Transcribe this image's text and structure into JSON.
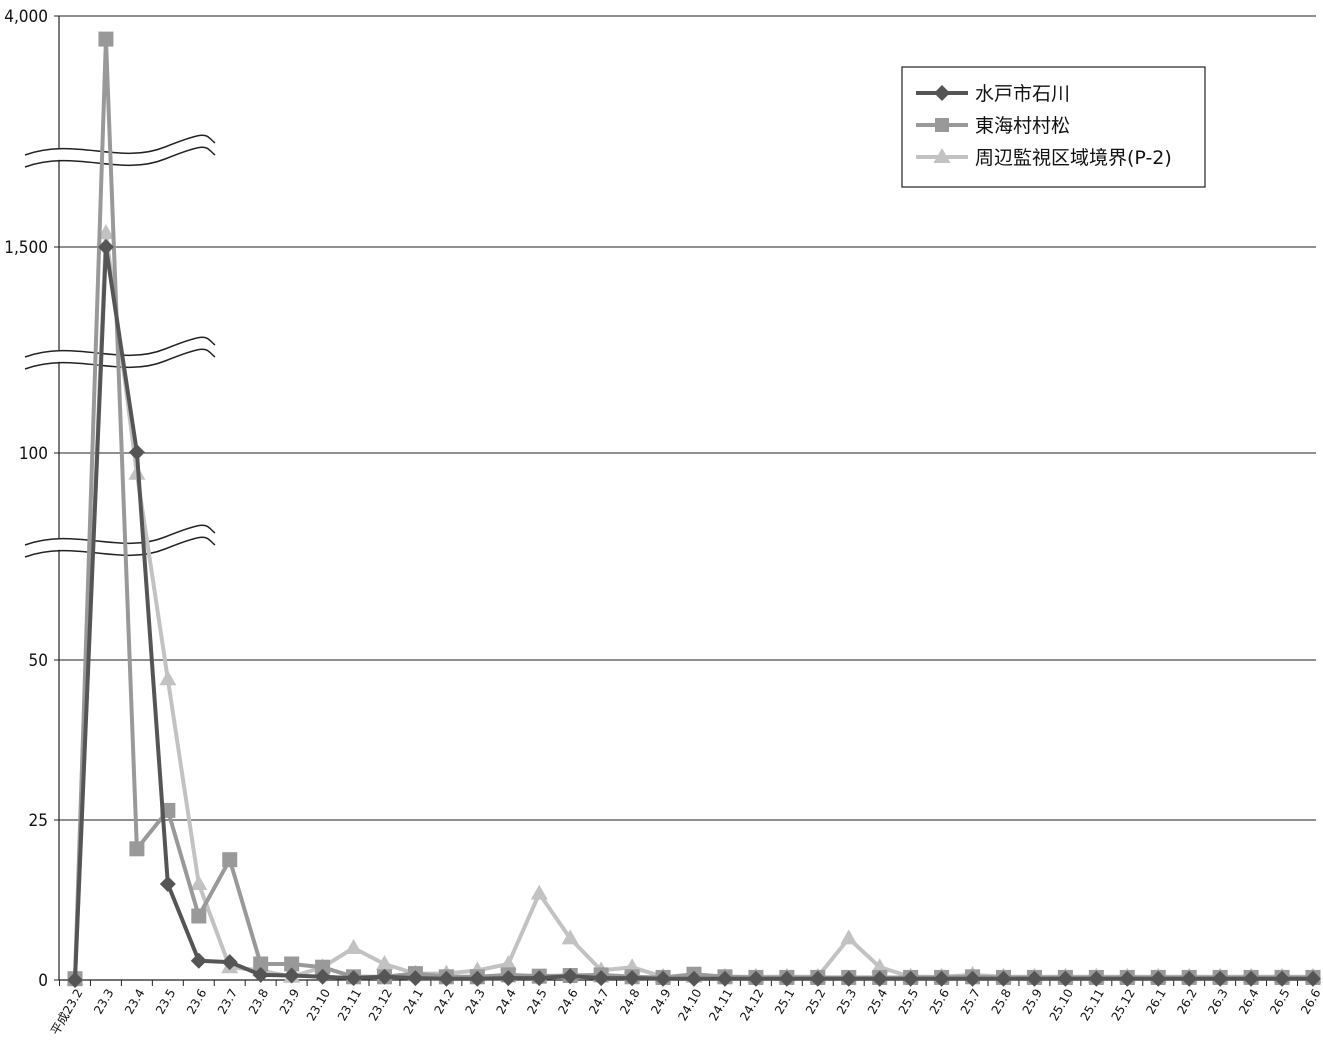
{
  "chart_data": {
    "type": "line",
    "title": "",
    "xlabel": "",
    "ylabel": "",
    "y_axis": {
      "scale": "broken",
      "tick_labels": [
        "0",
        "25",
        "50",
        "100",
        "1,500",
        "4,000"
      ],
      "breaks": "axis breaks between 50 and 100, between 100 and 1,500, and between 1,500 and 4,000"
    },
    "legend_position": "top-right",
    "grid": true,
    "categories": [
      "平成23.2",
      "23.3",
      "23.4",
      "23.5",
      "23.6",
      "23.7",
      "23.8",
      "23.9",
      "23.10",
      "23.11",
      "23.12",
      "24.1",
      "24.2",
      "24.3",
      "24.4",
      "24.5",
      "24.6",
      "24.7",
      "24.8",
      "24.9",
      "24.10",
      "24.11",
      "24.12",
      "25.1",
      "25.2",
      "25.3",
      "25.4",
      "25.5",
      "25.6",
      "25.7",
      "25.8",
      "25.9",
      "25.10",
      "25.11",
      "25.12",
      "26.1",
      "26.2",
      "26.3",
      "26.4",
      "26.5",
      "26.6"
    ],
    "series": [
      {
        "name": "水戸市石川",
        "color": "#555555",
        "marker": "diamond",
        "values": [
          0,
          1500,
          105,
          15,
          3,
          2.8,
          0.8,
          0.7,
          0.5,
          0.3,
          0.5,
          0.3,
          0.2,
          0.2,
          0.3,
          0.3,
          0.6,
          0.3,
          0.3,
          0.2,
          0.2,
          0.2,
          0.2,
          0.2,
          0.2,
          0.2,
          0.2,
          0.2,
          0.2,
          0.2,
          0.2,
          0.2,
          0.2,
          0.2,
          0.2,
          0.2,
          0.2,
          0.2,
          0.2,
          0.2,
          0.2
        ]
      },
      {
        "name": "東海村村松",
        "color": "#999999",
        "marker": "square",
        "values": [
          0.2,
          3750,
          20.5,
          26.5,
          10,
          18.8,
          2.5,
          2.5,
          2,
          0.5,
          0.5,
          1,
          0.5,
          0.5,
          0.8,
          0.6,
          0.7,
          0.8,
          0.5,
          0.4,
          0.9,
          0.5,
          0.4,
          0.4,
          0.4,
          0.4,
          0.4,
          0.4,
          0.4,
          0.5,
          0.4,
          0.4,
          0.4,
          0.4,
          0.4,
          0.4,
          0.4,
          0.4,
          0.4,
          0.4,
          0.4
        ]
      },
      {
        "name": "周辺監視区域境界(P-2)",
        "color": "#c2c2c2",
        "marker": "triangle",
        "values": [
          0.2,
          1650,
          95,
          47,
          15,
          2,
          1.5,
          0.5,
          2,
          5,
          2.5,
          1,
          1,
          1.5,
          2.5,
          13.5,
          6.5,
          1.5,
          2,
          0.5,
          0.5,
          0.5,
          0.5,
          0.5,
          0.5,
          6.5,
          2,
          0.5,
          0.5,
          0.8,
          0.5,
          0.5,
          0.5,
          0.5,
          0.5,
          0.5,
          0.5,
          0.5,
          0.5,
          0.5,
          0.5
        ]
      }
    ]
  }
}
